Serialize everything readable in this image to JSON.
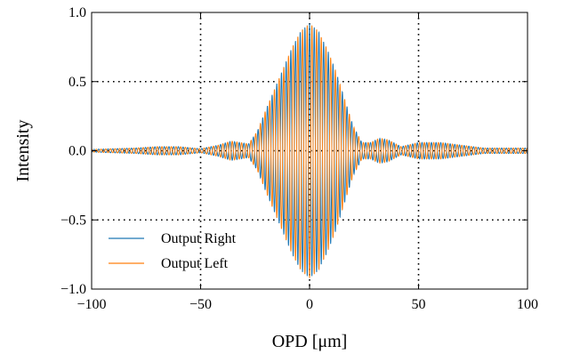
{
  "chart_data": {
    "type": "line",
    "title": "",
    "xlabel": "OPD [μm]",
    "ylabel": "Intensity",
    "xlim": [
      -100,
      100
    ],
    "ylim": [
      -1.0,
      1.0
    ],
    "x_ticks": [
      -100,
      -50,
      0,
      50,
      100
    ],
    "x_tick_labels": [
      "−100",
      "−50",
      "0",
      "50",
      "100"
    ],
    "y_ticks": [
      -1.0,
      -0.5,
      0.0,
      0.5,
      1.0
    ],
    "y_tick_labels": [
      "−1.0",
      "−0.5",
      "0.0",
      "0.5",
      "1.0"
    ],
    "grid": true,
    "grid_style": "dotted",
    "legend_position": "lower-left",
    "series": [
      {
        "name": "Output Right",
        "color": "#1f77b4",
        "fringe_period_um": 2.15,
        "phase_offset_rad": 0,
        "envelope_x": [
          -100,
          -90,
          -80,
          -70,
          -60,
          -50,
          -42,
          -36,
          -32,
          -28,
          -24,
          -20,
          -16,
          -12,
          -8,
          -4,
          0,
          4,
          8,
          12,
          16,
          20,
          24,
          28,
          32,
          36,
          42,
          50,
          60,
          70,
          80,
          90,
          100
        ],
        "envelope_amplitude": [
          0.01,
          0.015,
          0.02,
          0.03,
          0.03,
          0.015,
          0.04,
          0.07,
          0.06,
          0.05,
          0.14,
          0.3,
          0.45,
          0.6,
          0.75,
          0.87,
          0.92,
          0.87,
          0.74,
          0.58,
          0.38,
          0.18,
          0.06,
          0.06,
          0.09,
          0.08,
          0.03,
          0.06,
          0.06,
          0.04,
          0.02,
          0.02,
          0.02
        ]
      },
      {
        "name": "Output Left",
        "color": "#ff7f0e",
        "fringe_period_um": 2.15,
        "phase_offset_rad": 3.14159,
        "envelope_x": [
          -100,
          -90,
          -80,
          -70,
          -60,
          -50,
          -42,
          -36,
          -32,
          -28,
          -24,
          -20,
          -16,
          -12,
          -8,
          -4,
          0,
          4,
          8,
          12,
          16,
          20,
          24,
          28,
          32,
          36,
          42,
          50,
          60,
          70,
          80,
          90,
          100
        ],
        "envelope_amplitude": [
          0.01,
          0.015,
          0.02,
          0.03,
          0.03,
          0.015,
          0.04,
          0.07,
          0.06,
          0.05,
          0.14,
          0.3,
          0.45,
          0.6,
          0.75,
          0.87,
          0.92,
          0.87,
          0.74,
          0.58,
          0.38,
          0.18,
          0.06,
          0.06,
          0.09,
          0.08,
          0.03,
          0.06,
          0.06,
          0.04,
          0.02,
          0.02,
          0.02
        ]
      }
    ]
  }
}
